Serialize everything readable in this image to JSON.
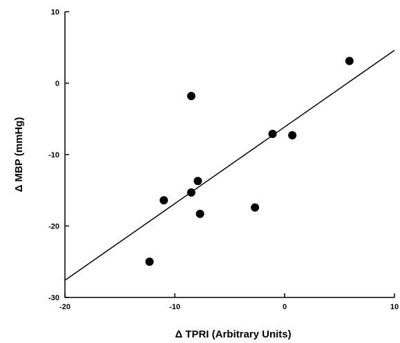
{
  "chart_data": {
    "type": "scatter",
    "title": "",
    "xlabel": "Δ  TPRI  (Arbitrary  Units)",
    "ylabel": "Δ  MBP  (mmHg)",
    "xlim": [
      -20,
      10
    ],
    "ylim": [
      -30,
      10
    ],
    "xticks": [
      -20,
      -10,
      0,
      10
    ],
    "yticks": [
      10,
      0,
      -10,
      -20,
      -30
    ],
    "xtick_labels": [
      "-20",
      "-10",
      "0",
      "10"
    ],
    "ytick_labels": [
      "10",
      "0",
      "-10",
      "-20",
      "-30"
    ],
    "grid": false,
    "points": [
      {
        "x": -12.3,
        "y": -25.0
      },
      {
        "x": -11.0,
        "y": -16.4
      },
      {
        "x": -8.5,
        "y": -1.8
      },
      {
        "x": -8.5,
        "y": -15.3
      },
      {
        "x": -7.9,
        "y": -13.7
      },
      {
        "x": -7.7,
        "y": -18.3
      },
      {
        "x": -2.7,
        "y": -17.4
      },
      {
        "x": -1.1,
        "y": -7.1
      },
      {
        "x": 0.7,
        "y": -7.3
      },
      {
        "x": 5.9,
        "y": 3.1
      }
    ],
    "regression_line": {
      "x": [
        -20,
        10
      ],
      "y": [
        -27.6,
        4.6
      ]
    },
    "colors": {
      "marker": "#000000",
      "line": "#000000",
      "background": "#ffffff"
    }
  }
}
